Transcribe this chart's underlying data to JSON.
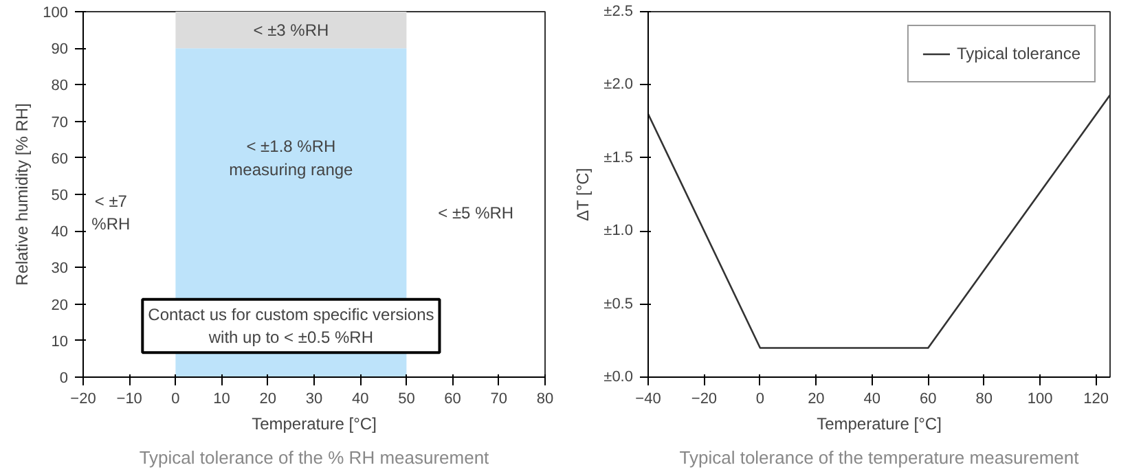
{
  "chart_data": [
    {
      "type": "bar",
      "stacked": true,
      "x": [
        25
      ],
      "series": [
        {
          "color": "#bde3fa",
          "values": [
            90
          ]
        },
        {
          "color": "#dcdcdc",
          "values": [
            10
          ]
        }
      ],
      "xlabel": "Temperature [°C]",
      "ylabel": "Relative humidity [% RH]",
      "xlim": [
        -20,
        80
      ],
      "ylim": [
        0,
        100
      ],
      "xticks": [
        -20,
        -10,
        0,
        10,
        20,
        30,
        40,
        50,
        60,
        70,
        80
      ],
      "yticks": [
        0,
        10,
        20,
        30,
        40,
        50,
        60,
        70,
        80,
        90,
        100
      ],
      "annotations": [
        "< ±3 %RH",
        "< ±1.8 %RH\nmeasuring range",
        "< ±7\n%RH",
        "< ±5 %RH",
        "Contact us for custom specific versions\nwith up to < ±0.5 %RH",
        "Typical tolerance of the % RH measurement"
      ]
    },
    {
      "type": "line",
      "legend": "top right",
      "x": [
        -40,
        0,
        60,
        125
      ],
      "series": [
        {
          "name": "Typical tolerance",
          "color": "#333333",
          "values": [
            1.8,
            0.2,
            0.2,
            1.93
          ]
        }
      ],
      "xlabel": "Temperature [°C]",
      "ylabel": "ΔT [°C]",
      "xlim": [
        -40,
        125
      ],
      "ylim": [
        0,
        2.5
      ],
      "xticks": [
        -40,
        -20,
        0,
        20,
        40,
        60,
        80,
        100,
        120
      ],
      "yticks": [
        {
          "value": 0,
          "label": "±0.0"
        },
        {
          "value": 0.5,
          "label": "±0.5"
        },
        {
          "value": 1.0,
          "label": "±1.0"
        },
        {
          "value": 1.5,
          "label": "±1.5"
        },
        {
          "value": 2.0,
          "label": "±2.0"
        },
        {
          "value": 2.5,
          "label": "±2.5"
        }
      ],
      "annotations": [
        "Typical tolerance of the temperature measurement"
      ]
    }
  ]
}
